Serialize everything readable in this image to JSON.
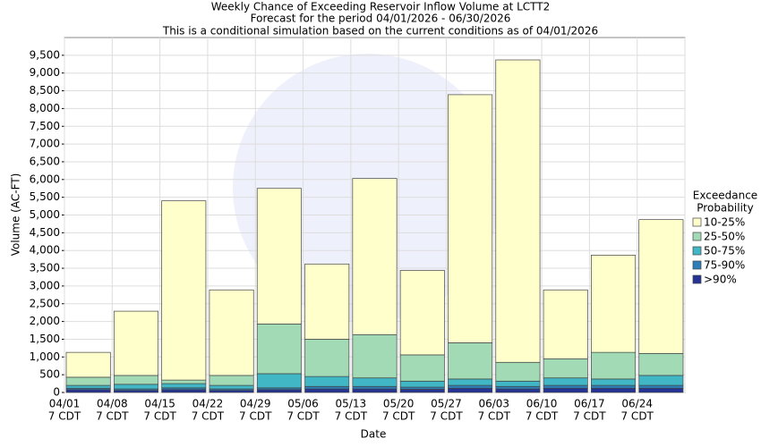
{
  "chart_data": {
    "type": "stacked_bar",
    "title": [
      "Weekly Chance of Exceeding Reservoir Inflow Volume at LCTT2",
      "Forecast for the period 04/01/2026 - 06/30/2026",
      "This is a conditional simulation based on the current conditions as of 04/01/2026"
    ],
    "x_label": "Date",
    "y_label": "Volume (AC-FT)",
    "categories": [
      "04/01",
      "04/08",
      "04/15",
      "04/22",
      "04/29",
      "05/06",
      "05/13",
      "05/20",
      "05/27",
      "06/03",
      "06/10",
      "06/17",
      "06/24"
    ],
    "category_sublabel": "7 CDT",
    "legend_title": [
      "Exceedance",
      "Probability"
    ],
    "series": [
      {
        "name": "10-25%",
        "color": "#ffffcc",
        "values": [
          700,
          1810,
          5050,
          2410,
          3820,
          2120,
          4400,
          2380,
          6990,
          8520,
          1940,
          2740,
          3770
        ]
      },
      {
        "name": "25-50%",
        "color": "#a1dab4",
        "values": [
          230,
          250,
          100,
          280,
          1400,
          1050,
          1220,
          740,
          1020,
          530,
          540,
          750,
          620
        ]
      },
      {
        "name": "50-75%",
        "color": "#41b6c4",
        "values": [
          80,
          130,
          120,
          100,
          400,
          280,
          240,
          170,
          180,
          150,
          210,
          180,
          280
        ]
      },
      {
        "name": "75-90%",
        "color": "#2c7fb8",
        "values": [
          40,
          40,
          50,
          40,
          50,
          70,
          70,
          60,
          80,
          70,
          80,
          80,
          80
        ]
      },
      {
        "name": ">90%",
        "color": "#253494",
        "values": [
          80,
          60,
          80,
          60,
          80,
          100,
          100,
          90,
          120,
          100,
          120,
          120,
          120
        ]
      }
    ],
    "ylim": [
      0,
      10000
    ],
    "yticks": [
      0,
      500,
      {
        "value": 1000,
        "label": "1,000"
      },
      {
        "value": 1500,
        "label": "1,500"
      },
      {
        "value": 2000,
        "label": "2,000"
      },
      {
        "value": 2500,
        "label": "2,500"
      },
      {
        "value": 3000,
        "label": "3,000"
      },
      {
        "value": 3500,
        "label": "3,500"
      },
      {
        "value": 4000,
        "label": "4,000"
      },
      {
        "value": 4500,
        "label": "4,500"
      },
      {
        "value": 5000,
        "label": "5,000"
      },
      {
        "value": 5500,
        "label": "5,500"
      },
      {
        "value": 6000,
        "label": "6,000"
      },
      {
        "value": 6500,
        "label": "6,500"
      },
      {
        "value": 7000,
        "label": "7,000"
      },
      {
        "value": 7500,
        "label": "7,500"
      },
      {
        "value": 8000,
        "label": "8,000"
      },
      {
        "value": 8500,
        "label": "8,500"
      },
      {
        "value": 9000,
        "label": "9,000"
      },
      {
        "value": 9500,
        "label": "9,500"
      }
    ],
    "grid": true
  }
}
